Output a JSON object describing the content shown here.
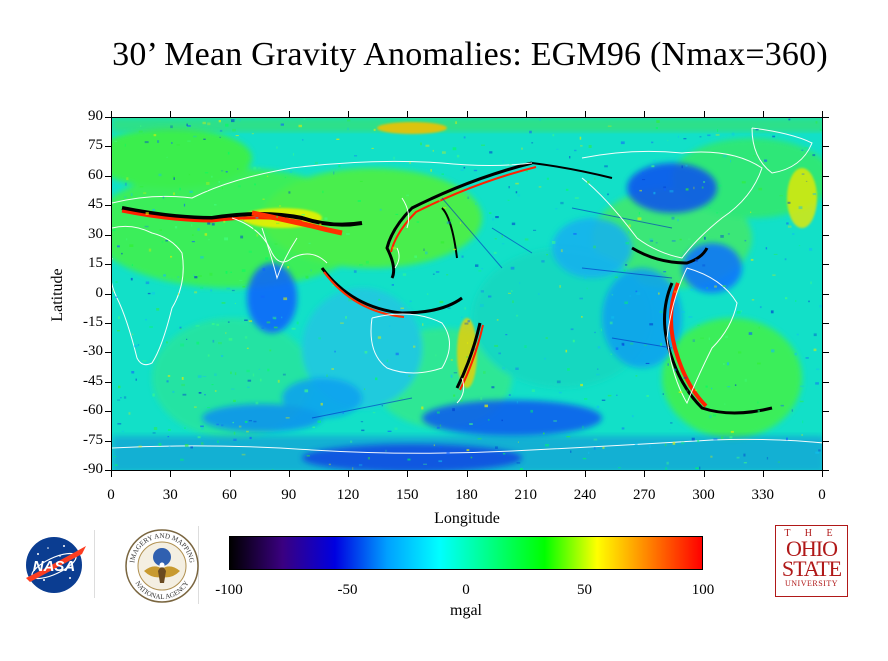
{
  "title": "30’ Mean Gravity Anomalies: EGM96 (Nmax=360)",
  "y_axis": {
    "label": "Latitude",
    "ticks": [
      "90",
      "75",
      "60",
      "45",
      "30",
      "15",
      "0",
      "-15",
      "-30",
      "-45",
      "-60",
      "-75",
      "-90"
    ]
  },
  "x_axis": {
    "label": "Longitude",
    "ticks": [
      "0",
      "30",
      "60",
      "90",
      "120",
      "150",
      "180",
      "210",
      "240",
      "270",
      "300",
      "330",
      "0"
    ]
  },
  "colorbar": {
    "ticks": [
      "-100",
      "-50",
      "0",
      "50",
      "100"
    ],
    "units": "mgal",
    "colors": [
      "#000000",
      "#3a0080",
      "#0000e0",
      "#00a0ff",
      "#00ffff",
      "#00ff80",
      "#00ff00",
      "#ffff00",
      "#ff8000",
      "#ff0000"
    ]
  },
  "logos": {
    "nasa": {
      "text": "NASA",
      "icon": "nasa-meatball-icon"
    },
    "nima": {
      "top_text": "IMAGERY AND MAPPING",
      "bottom_text": "NATIONAL AGENCY",
      "icon": "eagle-seal-icon"
    },
    "osu": {
      "the": "T H E",
      "line1": "OHIO",
      "line2": "STATE",
      "line3": "UNIVERSITY"
    }
  }
}
